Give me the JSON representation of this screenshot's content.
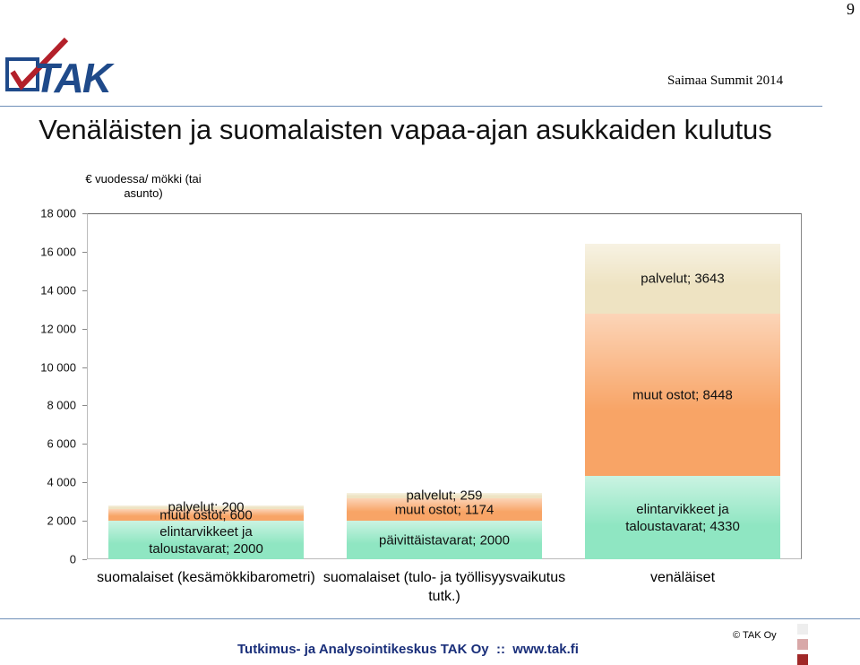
{
  "page": {
    "number": "9",
    "event": "Saimaa Summit 2014",
    "logo": "TAK",
    "footer": "Tutkimus- ja Analysointikeskus TAK Oy  ::  www.tak.fi",
    "copyright": "© TAK Oy"
  },
  "chart_data": {
    "type": "stacked_bar",
    "title": "Venäläisten ja suomalaisten vapaa-ajan asukkaiden kulutus",
    "y_label": "€ vuodessa/ mökki (tai asunto)",
    "categories": [
      "suomalaiset (kesämökkibarometri)",
      "suomalaiset (tulo- ja työllisyysvaikutus tutk.)",
      "venäläiset"
    ],
    "series": [
      {
        "color": "#8fe6c2",
        "values": [
          2000,
          2000,
          4330
        ],
        "value_labels": [
          "elintarvikkeet ja taloustavarat; 2000",
          "päivittäistavarat; 2000",
          "elintarvikkeet ja taloustavarat; 4330"
        ]
      },
      {
        "color": "#f8a466",
        "values": [
          600,
          1174,
          8448
        ],
        "value_labels": [
          "muut ostot; 600",
          "muut ostot; 1174",
          "muut ostot; 8448"
        ]
      },
      {
        "color": "#eee3c2",
        "values": [
          200,
          259,
          3643
        ],
        "value_labels": [
          "palvelut; 200",
          "palvelut; 259",
          "palvelut; 3643"
        ]
      }
    ],
    "ylim": [
      0,
      18000
    ],
    "yticks": [
      0,
      {
        "value": 2000,
        "label": "2 000"
      },
      {
        "value": 4000,
        "label": "4 000"
      },
      {
        "value": 6000,
        "label": "6 000"
      },
      {
        "value": 8000,
        "label": "8 000"
      },
      {
        "value": 10000,
        "label": "10 000"
      },
      {
        "value": 12000,
        "label": "12 000"
      },
      {
        "value": 14000,
        "label": "14 000"
      },
      {
        "value": 16000,
        "label": "16 000"
      },
      {
        "value": 18000,
        "label": "18 000"
      }
    ]
  }
}
